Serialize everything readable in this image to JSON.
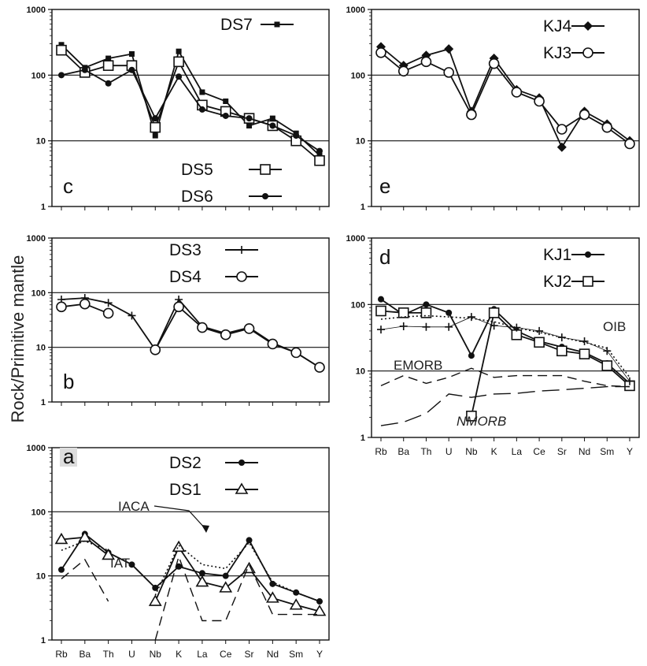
{
  "figure": {
    "ylabel": "Rock/Primitive mantle",
    "ytick_labels": [
      "1",
      "10",
      "100",
      "1000"
    ]
  },
  "chart_data": [
    {
      "type": "line",
      "panel_label": "c",
      "yscale": "log",
      "ylim": [
        1,
        1000
      ],
      "categories": [
        "Rb",
        "Ba",
        "Th",
        "U",
        "Nb",
        "K",
        "La",
        "Ce",
        "Sr",
        "Nd",
        "Sm",
        "Y"
      ],
      "grid_y": [
        10,
        100
      ],
      "series": [
        {
          "name": "DS7",
          "marker": "filled-square",
          "values": [
            290,
            130,
            180,
            210,
            12,
            230,
            55,
            40,
            17,
            22,
            13,
            6
          ]
        },
        {
          "name": "DS5",
          "marker": "open-square",
          "values": [
            240,
            110,
            140,
            140,
            16,
            160,
            35,
            28,
            22,
            17,
            10,
            5
          ]
        },
        {
          "name": "DS6",
          "marker": "filled-circle",
          "values": [
            100,
            120,
            75,
            120,
            22,
            95,
            30,
            24,
            22,
            17,
            12,
            7
          ]
        }
      ]
    },
    {
      "type": "line",
      "panel_label": "e",
      "yscale": "log",
      "ylim": [
        1,
        1000
      ],
      "categories": [
        "Rb",
        "Ba",
        "Th",
        "U",
        "Nb",
        "K",
        "La",
        "Ce",
        "Sr",
        "Nd",
        "Sm",
        "Y"
      ],
      "grid_y": [
        10,
        100
      ],
      "series": [
        {
          "name": "KJ4",
          "marker": "filled-diamond",
          "values": [
            270,
            140,
            200,
            250,
            28,
            180,
            60,
            45,
            8,
            28,
            18,
            10
          ]
        },
        {
          "name": "KJ3",
          "marker": "open-circle",
          "values": [
            220,
            115,
            160,
            110,
            25,
            150,
            55,
            40,
            15,
            25,
            16,
            9
          ]
        }
      ]
    },
    {
      "type": "line",
      "panel_label": "b",
      "yscale": "log",
      "ylim": [
        1,
        1000
      ],
      "categories": [
        "Rb",
        "Ba",
        "Th",
        "U",
        "Nb",
        "K",
        "La",
        "Ce",
        "Sr",
        "Nd",
        "Sm",
        "Y"
      ],
      "grid_y": [
        10,
        100
      ],
      "series": [
        {
          "name": "DS3",
          "marker": "plus",
          "values": [
            75,
            80,
            65,
            38,
            9,
            75,
            24,
            18,
            23,
            12,
            8,
            4.3
          ]
        },
        {
          "name": "DS4",
          "marker": "open-circle",
          "values": [
            55,
            62,
            42,
            null,
            9,
            55,
            23,
            17,
            22,
            11.5,
            8,
            4.3
          ]
        }
      ]
    },
    {
      "type": "line",
      "panel_label": "d",
      "yscale": "log",
      "ylim": [
        1,
        1000
      ],
      "categories": [
        "Rb",
        "Ba",
        "Th",
        "U",
        "Nb",
        "K",
        "La",
        "Ce",
        "Sr",
        "Nd",
        "Sm",
        "Y"
      ],
      "grid_y": [
        10,
        100
      ],
      "series": [
        {
          "name": "KJ1",
          "marker": "filled-circle",
          "values": [
            120,
            70,
            100,
            75,
            17,
            85,
            40,
            28,
            23,
            19,
            13,
            6.5
          ]
        },
        {
          "name": "KJ2",
          "marker": "open-square",
          "values": [
            80,
            75,
            75,
            null,
            2.1,
            75,
            35,
            27,
            20,
            18,
            12,
            6
          ]
        },
        {
          "name": "OIB",
          "style": "dotted",
          "values": [
            60,
            65,
            68,
            65,
            62,
            55,
            45,
            38,
            32,
            27,
            22,
            8
          ]
        },
        {
          "name": "",
          "style": "plus-line",
          "values": [
            42,
            47,
            46,
            46,
            65,
            48,
            45,
            40,
            32,
            28,
            20,
            7
          ]
        },
        {
          "name": "EMORB",
          "style": "dashed",
          "values": [
            6,
            8.5,
            6.5,
            8,
            11,
            8,
            8.5,
            8.5,
            8.5,
            7,
            6,
            5.8
          ]
        },
        {
          "name": "NMORB",
          "style": "long-dash",
          "values": [
            1.5,
            1.7,
            2.3,
            4.5,
            4,
            4.5,
            4.6,
            5,
            5.2,
            5.5,
            5.8,
            5.8
          ]
        }
      ],
      "annotations": [
        "OIB",
        "EMORB",
        "NMORB"
      ]
    },
    {
      "type": "line",
      "panel_label": "a",
      "yscale": "log",
      "ylim": [
        1,
        1000
      ],
      "categories": [
        "Rb",
        "Ba",
        "Th",
        "U",
        "Nb",
        "K",
        "La",
        "Ce",
        "Sr",
        "Nd",
        "Sm",
        "Y"
      ],
      "grid_y": [
        10,
        100
      ],
      "series": [
        {
          "name": "DS2",
          "marker": "filled-circle",
          "values": [
            12.5,
            45,
            23,
            15,
            6.5,
            14,
            11,
            10,
            36,
            7.5,
            5.5,
            4
          ]
        },
        {
          "name": "DS1",
          "marker": "open-triangle",
          "values": [
            37,
            40,
            21,
            null,
            4,
            28,
            8,
            6.5,
            13,
            4.5,
            3.5,
            2.8
          ]
        },
        {
          "name": "IACA",
          "style": "dotted",
          "values": [
            25,
            35,
            25,
            null,
            5,
            30,
            15,
            13,
            33,
            8,
            5.5,
            4
          ]
        },
        {
          "name": "IAT",
          "style": "dashed",
          "values": [
            9,
            18,
            4,
            null,
            1,
            20,
            2,
            2,
            15,
            2.5,
            2.5,
            2.5
          ]
        }
      ],
      "annotations": [
        "IACA",
        "IAT"
      ]
    }
  ]
}
